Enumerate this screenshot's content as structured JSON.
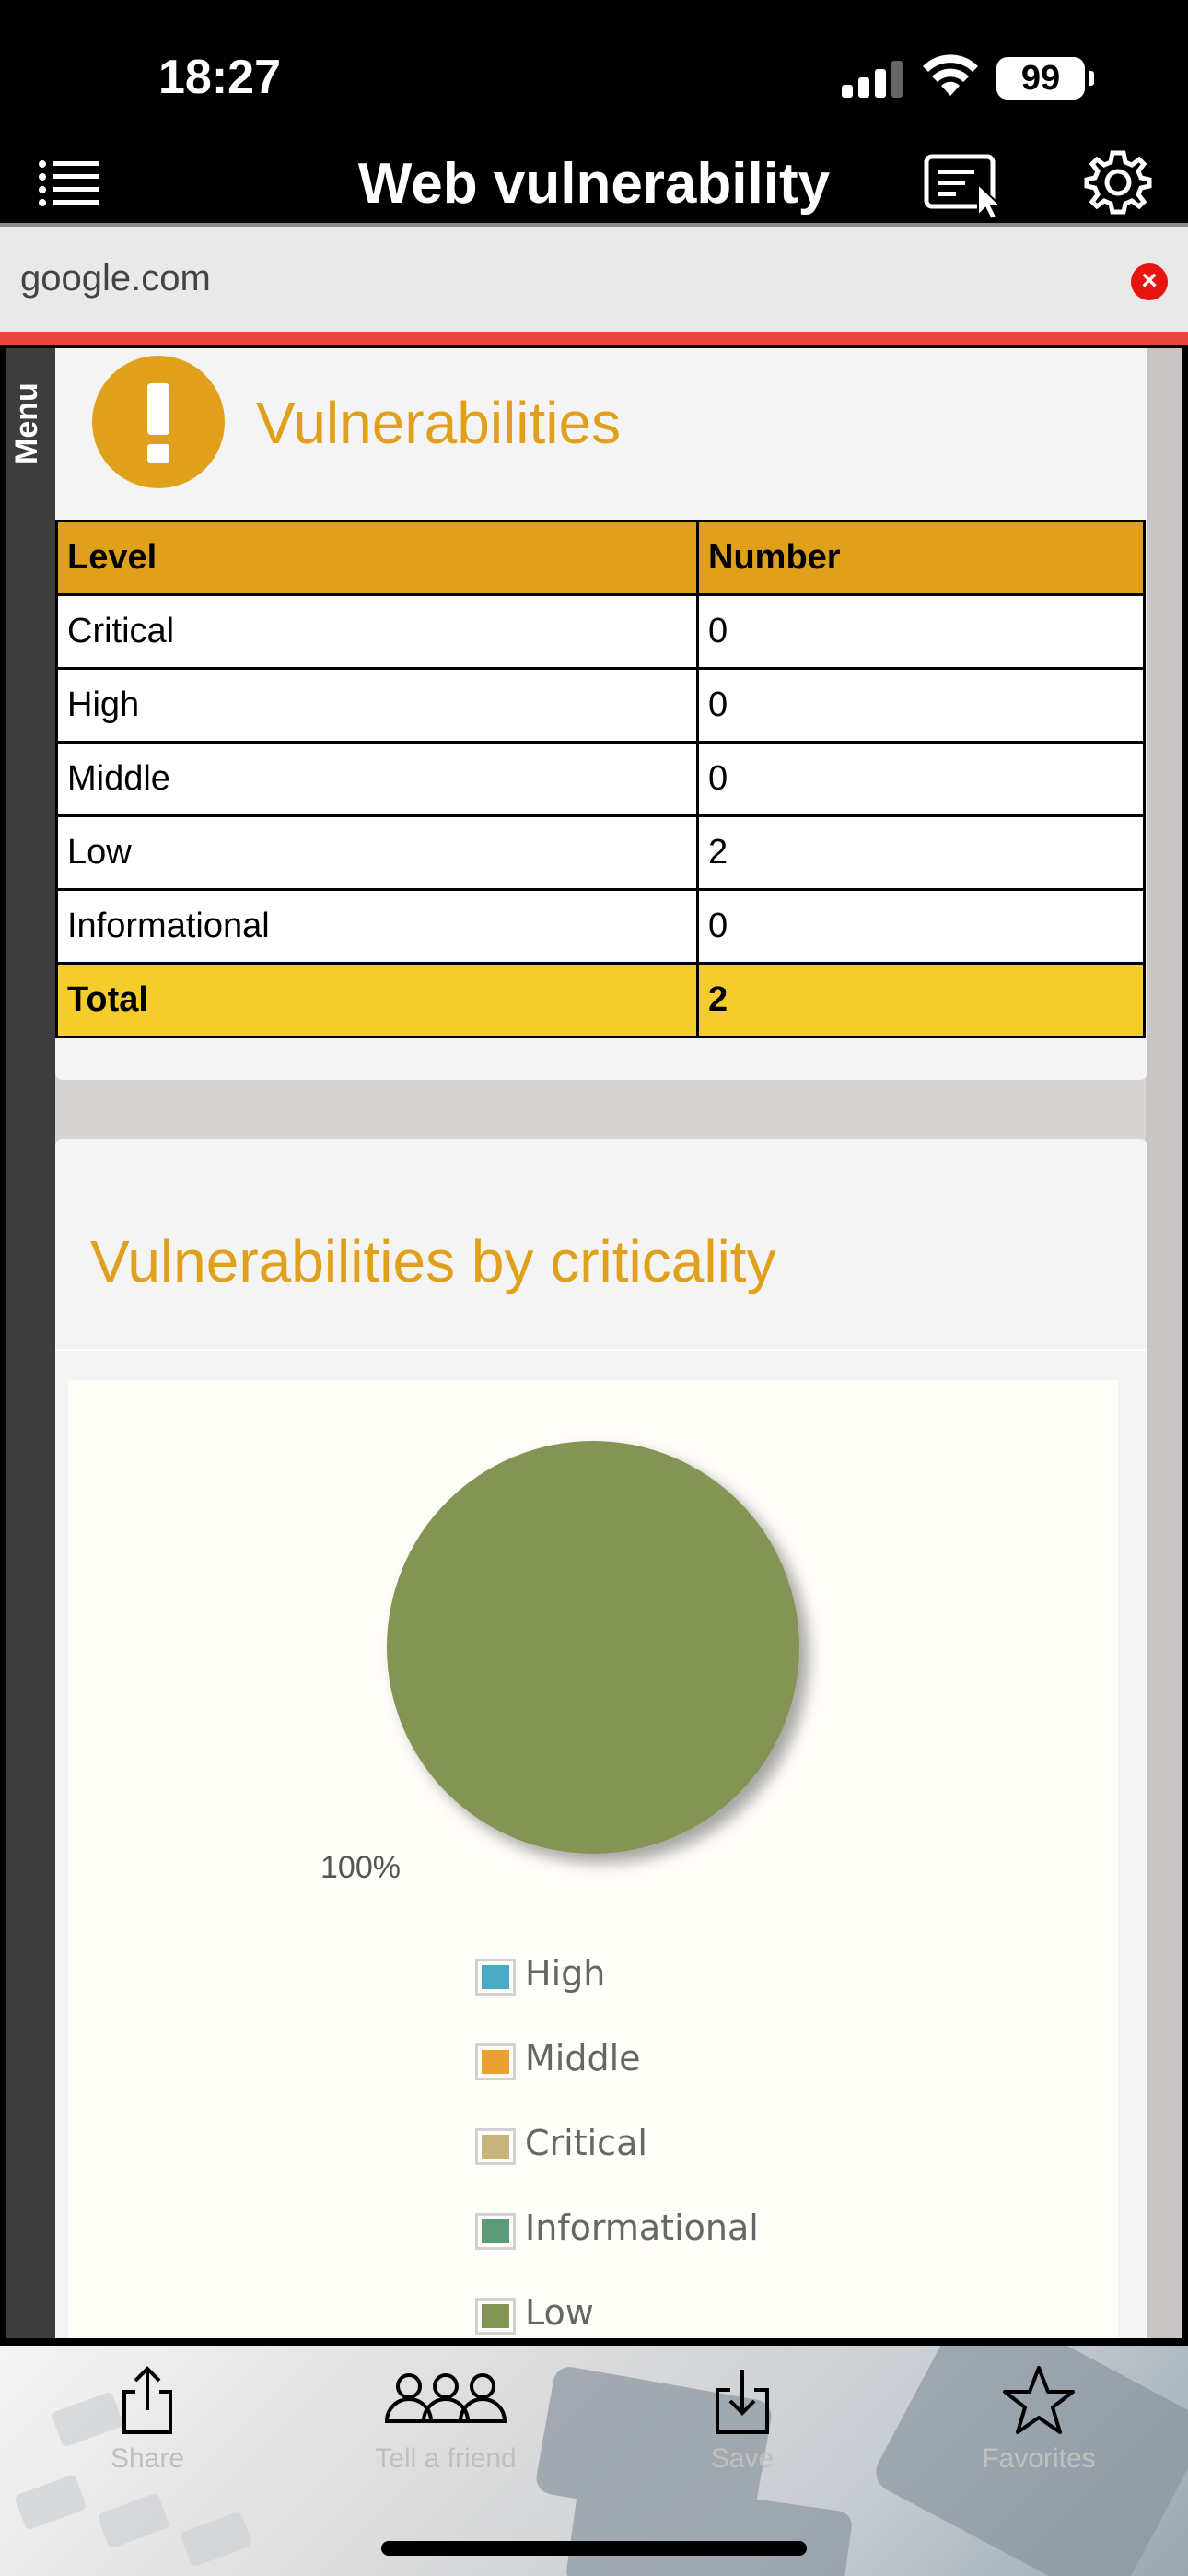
{
  "status_bar": {
    "time": "18:27",
    "battery": "99"
  },
  "nav": {
    "title": "Web vulnerability"
  },
  "url_bar": {
    "value": "google.com"
  },
  "side_menu": {
    "label": "Menu"
  },
  "vulnerabilities_panel": {
    "title": "Vulnerabilities",
    "headers": [
      "Level",
      "Number"
    ],
    "rows": [
      {
        "level": "Critical",
        "number": "0"
      },
      {
        "level": "High",
        "number": "0"
      },
      {
        "level": "Middle",
        "number": "0"
      },
      {
        "level": "Low",
        "number": "2"
      },
      {
        "level": "Informational",
        "number": "0"
      }
    ],
    "total": {
      "label": "Total",
      "number": "2"
    }
  },
  "criticality_panel": {
    "title": "Vulnerabilities by criticality"
  },
  "chart_data": {
    "type": "pie",
    "slices": [
      {
        "label": "High",
        "value": 0,
        "color": "#4aaac6"
      },
      {
        "label": "Middle",
        "value": 0,
        "color": "#eba12e"
      },
      {
        "label": "Critical",
        "value": 0,
        "color": "#c9b37d"
      },
      {
        "label": "Informational",
        "value": 0,
        "color": "#5d9a7a"
      },
      {
        "label": "Low",
        "value": 100,
        "color": "#839455"
      }
    ],
    "data_label": "100%",
    "legend": [
      "High",
      "Middle",
      "Critical",
      "Informational",
      "Low"
    ],
    "legend_position": "bottom"
  },
  "toolbar": {
    "share": "Share",
    "tell_friend": "Tell a friend",
    "save": "Save",
    "favorites": "Favorites"
  }
}
